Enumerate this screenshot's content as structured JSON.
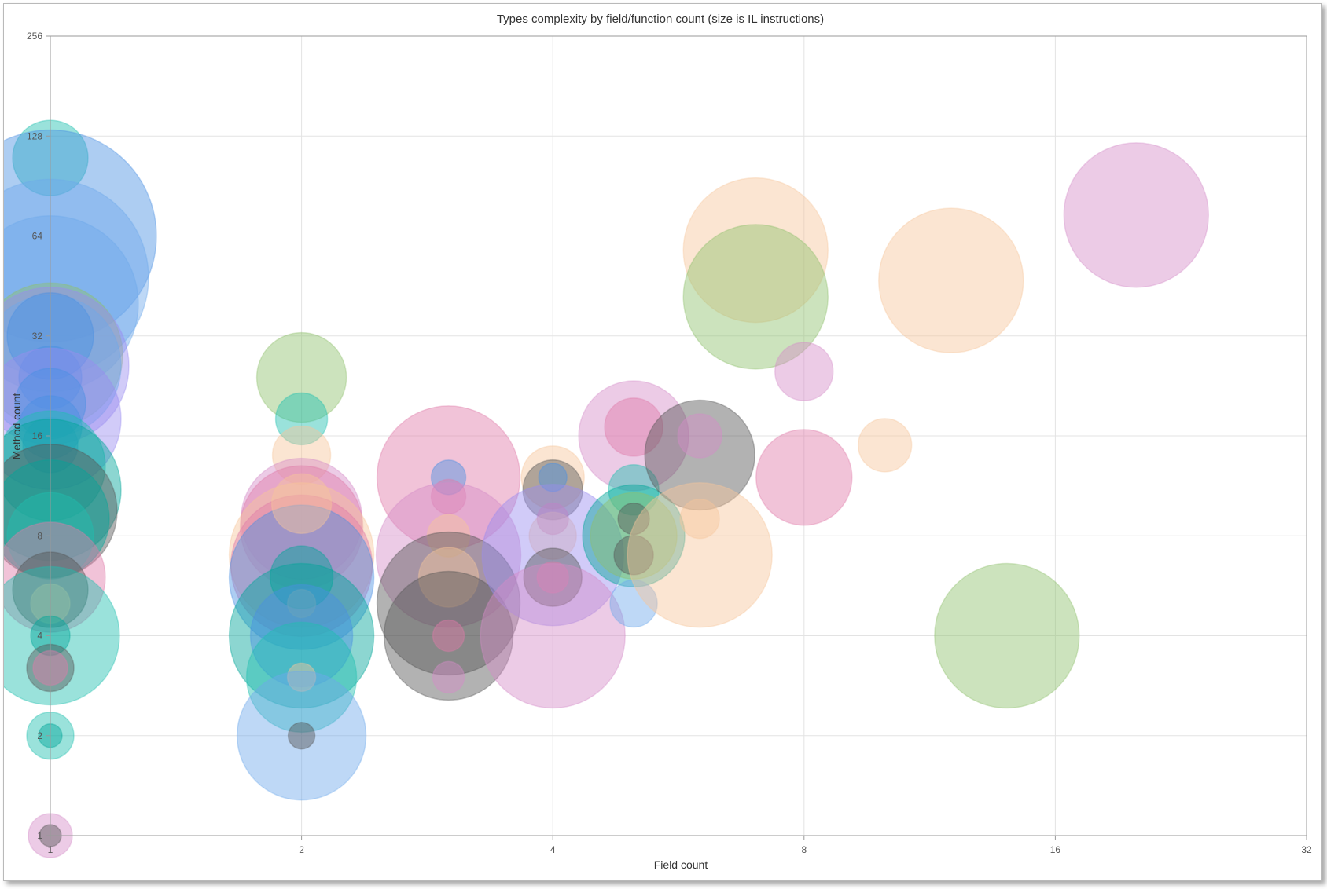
{
  "chart_data": {
    "type": "scatter",
    "title": "Types complexity by field/function count (size is IL instructions)",
    "xlabel": "Field count",
    "ylabel": "Method count",
    "x_scale": "log2",
    "y_scale": "log2",
    "xlim": [
      1,
      32
    ],
    "ylim": [
      1,
      256
    ],
    "x_ticks": [
      "1",
      "2",
      "4",
      "8",
      "16",
      "32"
    ],
    "y_ticks": [
      "1",
      "2",
      "4",
      "8",
      "16",
      "32",
      "64",
      "128",
      "256"
    ],
    "grid": true,
    "legend": "none",
    "colors": {
      "blue": "#4a90e2",
      "lightblue": "#6ea8ea",
      "teal": "#1fbfb0",
      "darkteal": "#00a599",
      "green": "#8ec06c",
      "peach": "#f6c59c",
      "pink": "#e07aa9",
      "lavender": "#d58cc8",
      "purple": "#9a8cf0",
      "gray": "#555555"
    },
    "points": [
      {
        "x": 1,
        "y": 110,
        "size": 48,
        "color": "teal"
      },
      {
        "x": 1,
        "y": 64,
        "size": 135,
        "color": "blue"
      },
      {
        "x": 1,
        "y": 48,
        "size": 125,
        "color": "lightblue"
      },
      {
        "x": 1,
        "y": 40,
        "size": 112,
        "color": "lightblue"
      },
      {
        "x": 1,
        "y": 28,
        "size": 92,
        "color": "green"
      },
      {
        "x": 1,
        "y": 26,
        "size": 100,
        "color": "purple"
      },
      {
        "x": 1,
        "y": 26,
        "size": 90,
        "color": "lightblue"
      },
      {
        "x": 1,
        "y": 32,
        "size": 55,
        "color": "blue"
      },
      {
        "x": 1,
        "y": 24,
        "size": 40,
        "color": "blue"
      },
      {
        "x": 1,
        "y": 18,
        "size": 90,
        "color": "purple"
      },
      {
        "x": 1,
        "y": 20,
        "size": 45,
        "color": "blue"
      },
      {
        "x": 1,
        "y": 17,
        "size": 40,
        "color": "blue"
      },
      {
        "x": 1,
        "y": 15,
        "size": 35,
        "color": "blue"
      },
      {
        "x": 1,
        "y": 13,
        "size": 70,
        "color": "teal"
      },
      {
        "x": 1,
        "y": 11,
        "size": 90,
        "color": "darkteal"
      },
      {
        "x": 1,
        "y": 9.5,
        "size": 85,
        "color": "gray"
      },
      {
        "x": 1,
        "y": 9,
        "size": 75,
        "color": "darkteal"
      },
      {
        "x": 1,
        "y": 8,
        "size": 55,
        "color": "teal"
      },
      {
        "x": 1,
        "y": 6,
        "size": 70,
        "color": "pink"
      },
      {
        "x": 1,
        "y": 5.5,
        "size": 48,
        "color": "gray"
      },
      {
        "x": 1,
        "y": 5,
        "size": 25,
        "color": "peach"
      },
      {
        "x": 1,
        "y": 4,
        "size": 88,
        "color": "teal"
      },
      {
        "x": 1,
        "y": 4,
        "size": 25,
        "color": "darkteal"
      },
      {
        "x": 1,
        "y": 3.2,
        "size": 30,
        "color": "gray"
      },
      {
        "x": 1,
        "y": 3.2,
        "size": 22,
        "color": "pink"
      },
      {
        "x": 1,
        "y": 2,
        "size": 30,
        "color": "teal"
      },
      {
        "x": 1,
        "y": 2,
        "size": 15,
        "color": "darkteal"
      },
      {
        "x": 1,
        "y": 1,
        "size": 28,
        "color": "lavender"
      },
      {
        "x": 1,
        "y": 1,
        "size": 14,
        "color": "gray"
      },
      {
        "x": 2,
        "y": 24,
        "size": 57,
        "color": "green"
      },
      {
        "x": 2,
        "y": 18,
        "size": 33,
        "color": "teal"
      },
      {
        "x": 2,
        "y": 14,
        "size": 37,
        "color": "peach"
      },
      {
        "x": 2,
        "y": 9,
        "size": 77,
        "color": "lavender"
      },
      {
        "x": 2,
        "y": 8.5,
        "size": 78,
        "color": "pink"
      },
      {
        "x": 2,
        "y": 7,
        "size": 92,
        "color": "peach"
      },
      {
        "x": 2,
        "y": 6.5,
        "size": 90,
        "color": "pink"
      },
      {
        "x": 2,
        "y": 6,
        "size": 92,
        "color": "blue"
      },
      {
        "x": 2,
        "y": 10,
        "size": 38,
        "color": "peach"
      },
      {
        "x": 2,
        "y": 6,
        "size": 40,
        "color": "darkteal"
      },
      {
        "x": 2,
        "y": 5,
        "size": 18,
        "color": "peach"
      },
      {
        "x": 2,
        "y": 4,
        "size": 92,
        "color": "darkteal"
      },
      {
        "x": 2,
        "y": 4,
        "size": 65,
        "color": "blue"
      },
      {
        "x": 2,
        "y": 3,
        "size": 70,
        "color": "teal"
      },
      {
        "x": 2,
        "y": 3,
        "size": 18,
        "color": "peach"
      },
      {
        "x": 2,
        "y": 2,
        "size": 82,
        "color": "lightblue"
      },
      {
        "x": 2,
        "y": 2,
        "size": 17,
        "color": "gray"
      },
      {
        "x": 3,
        "y": 12,
        "size": 91,
        "color": "pink"
      },
      {
        "x": 3,
        "y": 12,
        "size": 22,
        "color": "blue"
      },
      {
        "x": 3,
        "y": 10.5,
        "size": 22,
        "color": "pink"
      },
      {
        "x": 3,
        "y": 7,
        "size": 92,
        "color": "lavender"
      },
      {
        "x": 3,
        "y": 8,
        "size": 27,
        "color": "peach"
      },
      {
        "x": 3,
        "y": 5,
        "size": 91,
        "color": "gray"
      },
      {
        "x": 3,
        "y": 6,
        "size": 38,
        "color": "peach"
      },
      {
        "x": 3,
        "y": 4,
        "size": 82,
        "color": "gray"
      },
      {
        "x": 3,
        "y": 4,
        "size": 20,
        "color": "pink"
      },
      {
        "x": 3,
        "y": 3,
        "size": 20,
        "color": "lavender"
      },
      {
        "x": 4,
        "y": 12,
        "size": 40,
        "color": "peach"
      },
      {
        "x": 4,
        "y": 11,
        "size": 38,
        "color": "gray"
      },
      {
        "x": 4,
        "y": 12,
        "size": 18,
        "color": "blue"
      },
      {
        "x": 4,
        "y": 9,
        "size": 20,
        "color": "pink"
      },
      {
        "x": 4,
        "y": 8,
        "size": 30,
        "color": "peach"
      },
      {
        "x": 4,
        "y": 7,
        "size": 90,
        "color": "purple"
      },
      {
        "x": 4,
        "y": 6,
        "size": 37,
        "color": "gray"
      },
      {
        "x": 4,
        "y": 6,
        "size": 20,
        "color": "pink"
      },
      {
        "x": 4,
        "y": 4,
        "size": 92,
        "color": "lavender"
      },
      {
        "x": 5,
        "y": 16,
        "size": 70,
        "color": "lavender"
      },
      {
        "x": 5,
        "y": 17,
        "size": 37,
        "color": "pink"
      },
      {
        "x": 5,
        "y": 11,
        "size": 32,
        "color": "teal"
      },
      {
        "x": 5,
        "y": 8,
        "size": 65,
        "color": "darkteal"
      },
      {
        "x": 5,
        "y": 8,
        "size": 55,
        "color": "green"
      },
      {
        "x": 5,
        "y": 9,
        "size": 20,
        "color": "gray"
      },
      {
        "x": 5,
        "y": 7,
        "size": 25,
        "color": "gray"
      },
      {
        "x": 5,
        "y": 5,
        "size": 30,
        "color": "lightblue"
      },
      {
        "x": 6,
        "y": 14,
        "size": 70,
        "color": "gray"
      },
      {
        "x": 6,
        "y": 16,
        "size": 28,
        "color": "lavender"
      },
      {
        "x": 6,
        "y": 9,
        "size": 25,
        "color": "peach"
      },
      {
        "x": 6,
        "y": 7,
        "size": 92,
        "color": "peach"
      },
      {
        "x": 7,
        "y": 58,
        "size": 92,
        "color": "peach"
      },
      {
        "x": 7,
        "y": 42,
        "size": 92,
        "color": "green"
      },
      {
        "x": 8,
        "y": 25,
        "size": 37,
        "color": "lavender"
      },
      {
        "x": 8,
        "y": 12,
        "size": 61,
        "color": "pink"
      },
      {
        "x": 10,
        "y": 15,
        "size": 34,
        "color": "peach"
      },
      {
        "x": 12,
        "y": 47,
        "size": 92,
        "color": "peach"
      },
      {
        "x": 14,
        "y": 4,
        "size": 92,
        "color": "green"
      },
      {
        "x": 20,
        "y": 74,
        "size": 92,
        "color": "lavender"
      }
    ]
  }
}
